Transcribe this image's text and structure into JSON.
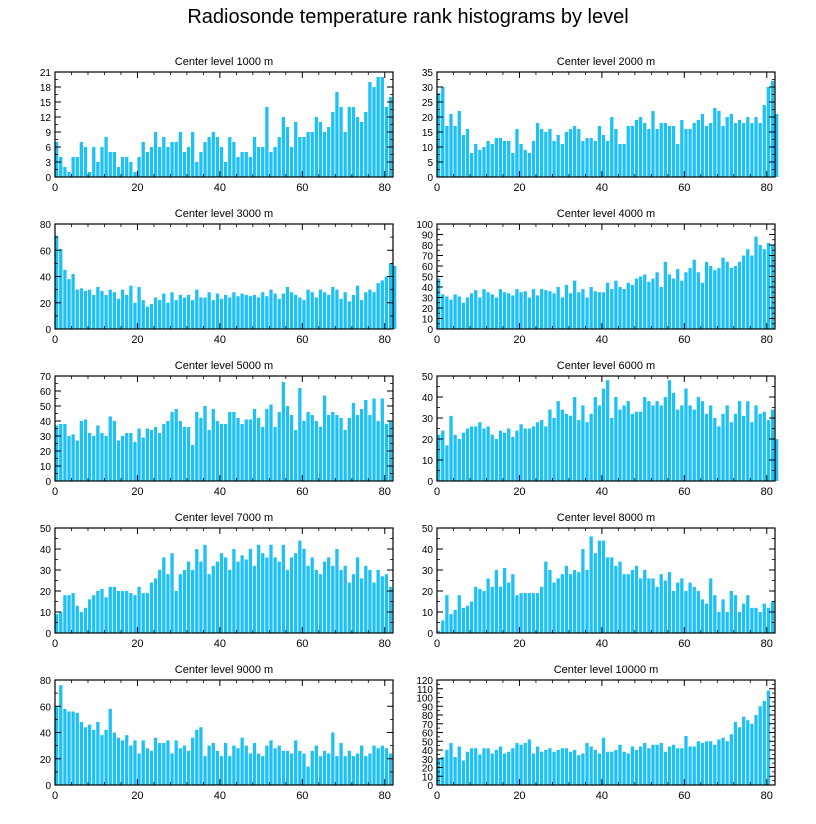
{
  "title": "Radiosonde temperature rank histograms by level",
  "bar_color": "#1ec0f5",
  "chart_data": [
    {
      "type": "bar",
      "title": "Center level 1000 m",
      "xlabel": "",
      "ylabel": "",
      "xlim": [
        0,
        82
      ],
      "ylim": [
        0,
        21
      ],
      "xticks": [
        0,
        20,
        40,
        60,
        80
      ],
      "yticks": [
        0,
        3,
        6,
        9,
        12,
        15,
        18,
        21
      ],
      "values": [
        7,
        4,
        2,
        1,
        4,
        4,
        7,
        6,
        1,
        6,
        3,
        6,
        8,
        5,
        5,
        2,
        4,
        4,
        3,
        1,
        4,
        7,
        5,
        6,
        9,
        6,
        8,
        6,
        7,
        7,
        9,
        5,
        6,
        9,
        3,
        5,
        7,
        8,
        9,
        8,
        6,
        3,
        8,
        7,
        4,
        5,
        5,
        4,
        8,
        6,
        6,
        14,
        5,
        6,
        8,
        12,
        10,
        6,
        11,
        8,
        8,
        9,
        9,
        12,
        11,
        9,
        10,
        13,
        17,
        14,
        9,
        14,
        14,
        12,
        11,
        13,
        19,
        18,
        20,
        20,
        14,
        16
      ]
    },
    {
      "type": "bar",
      "title": "Center level 2000 m",
      "xlabel": "",
      "ylabel": "",
      "xlim": [
        0,
        82
      ],
      "ylim": [
        0,
        35
      ],
      "xticks": [
        0,
        20,
        40,
        60,
        80
      ],
      "yticks": [
        0,
        5,
        10,
        15,
        20,
        25,
        30,
        35
      ],
      "values": [
        28,
        30,
        17,
        21,
        17,
        22,
        14,
        16,
        8,
        11,
        9,
        10,
        12,
        11,
        13,
        13,
        12,
        12,
        8,
        16,
        11,
        9,
        8,
        12,
        18,
        16,
        15,
        16,
        12,
        14,
        11,
        15,
        16,
        17,
        16,
        12,
        13,
        13,
        12,
        17,
        14,
        12,
        20,
        16,
        11,
        11,
        17,
        17,
        19,
        20,
        18,
        16,
        22,
        16,
        18,
        18,
        17,
        17,
        11,
        19,
        16,
        16,
        18,
        19,
        21,
        17,
        18,
        23,
        22,
        17,
        20,
        21,
        18,
        19,
        18,
        20,
        18,
        20,
        18,
        24,
        30,
        32,
        21
      ]
    },
    {
      "type": "bar",
      "title": "Center level 3000 m",
      "xlabel": "",
      "ylabel": "",
      "xlim": [
        0,
        82
      ],
      "ylim": [
        0,
        80
      ],
      "xticks": [
        0,
        20,
        40,
        60,
        80
      ],
      "yticks": [
        0,
        20,
        40,
        60,
        80
      ],
      "values": [
        71,
        61,
        45,
        38,
        42,
        30,
        31,
        29,
        30,
        26,
        32,
        29,
        26,
        30,
        28,
        23,
        30,
        26,
        33,
        20,
        32,
        22,
        17,
        19,
        24,
        22,
        27,
        20,
        28,
        22,
        26,
        24,
        26,
        22,
        30,
        24,
        24,
        28,
        22,
        27,
        23,
        26,
        24,
        28,
        25,
        27,
        26,
        25,
        26,
        24,
        28,
        25,
        30,
        27,
        23,
        27,
        32,
        28,
        26,
        24,
        22,
        30,
        28,
        24,
        30,
        28,
        26,
        32,
        30,
        23,
        28,
        21,
        26,
        33,
        22,
        28,
        30,
        28,
        35,
        37,
        40,
        50,
        48
      ]
    },
    {
      "type": "bar",
      "title": "Center level 4000 m",
      "xlabel": "",
      "ylabel": "",
      "xlim": [
        0,
        82
      ],
      "ylim": [
        0,
        100
      ],
      "xticks": [
        0,
        20,
        40,
        60,
        80
      ],
      "yticks": [
        0,
        10,
        20,
        30,
        40,
        50,
        60,
        70,
        80,
        90,
        100
      ],
      "values": [
        48,
        33,
        31,
        28,
        33,
        31,
        25,
        30,
        34,
        37,
        30,
        38,
        35,
        33,
        30,
        38,
        35,
        34,
        32,
        38,
        35,
        36,
        30,
        38,
        32,
        38,
        37,
        36,
        34,
        40,
        30,
        42,
        34,
        46,
        35,
        38,
        30,
        40,
        36,
        35,
        35,
        44,
        38,
        46,
        40,
        38,
        44,
        42,
        48,
        50,
        52,
        45,
        48,
        54,
        40,
        64,
        52,
        48,
        57,
        46,
        54,
        58,
        66,
        54,
        44,
        64,
        60,
        56,
        58,
        68,
        64,
        58,
        60,
        64,
        70,
        76,
        70,
        88,
        80,
        76,
        82,
        80
      ]
    },
    {
      "type": "bar",
      "title": "Center level 5000 m",
      "xlabel": "",
      "ylabel": "",
      "xlim": [
        0,
        82
      ],
      "ylim": [
        0,
        70
      ],
      "xticks": [
        0,
        20,
        40,
        60,
        80
      ],
      "yticks": [
        0,
        10,
        20,
        30,
        40,
        50,
        60,
        70
      ],
      "values": [
        37,
        38,
        38,
        30,
        31,
        27,
        40,
        41,
        32,
        30,
        37,
        32,
        30,
        43,
        40,
        27,
        30,
        32,
        32,
        26,
        35,
        29,
        35,
        34,
        36,
        32,
        38,
        40,
        46,
        48,
        40,
        36,
        36,
        24,
        46,
        42,
        50,
        34,
        48,
        40,
        38,
        38,
        46,
        46,
        42,
        38,
        41,
        41,
        48,
        42,
        36,
        48,
        51,
        36,
        46,
        66,
        50,
        44,
        34,
        62,
        40,
        46,
        44,
        40,
        36,
        57,
        44,
        46,
        44,
        42,
        34,
        42,
        52,
        44,
        48,
        54,
        44,
        55,
        40,
        55,
        38,
        40
      ]
    },
    {
      "type": "bar",
      "title": "Center level 6000 m",
      "xlabel": "",
      "ylabel": "",
      "xlim": [
        0,
        82
      ],
      "ylim": [
        0,
        50
      ],
      "xticks": [
        0,
        20,
        40,
        60,
        80
      ],
      "yticks": [
        0,
        10,
        20,
        30,
        40,
        50
      ],
      "values": [
        22,
        24,
        17,
        31,
        22,
        20,
        23,
        25,
        26,
        26,
        28,
        25,
        26,
        22,
        20,
        24,
        23,
        25,
        21,
        24,
        27,
        25,
        25,
        26,
        28,
        29,
        26,
        34,
        30,
        38,
        34,
        32,
        31,
        40,
        29,
        36,
        28,
        32,
        40,
        36,
        44,
        48,
        30,
        40,
        34,
        36,
        38,
        32,
        33,
        33,
        40,
        38,
        36,
        38,
        36,
        40,
        48,
        42,
        34,
        36,
        44,
        36,
        34,
        40,
        38,
        32,
        36,
        30,
        26,
        32,
        36,
        28,
        32,
        38,
        31,
        38,
        28,
        36,
        32,
        33,
        29,
        34,
        20
      ]
    },
    {
      "type": "bar",
      "title": "Center level 7000 m",
      "xlabel": "",
      "ylabel": "",
      "xlim": [
        0,
        82
      ],
      "ylim": [
        0,
        50
      ],
      "xticks": [
        0,
        20,
        40,
        60,
        80
      ],
      "yticks": [
        0,
        10,
        20,
        30,
        40,
        50
      ],
      "values": [
        9,
        10,
        18,
        18,
        19,
        13,
        10,
        12,
        16,
        18,
        20,
        21,
        17,
        22,
        22,
        20,
        20,
        20,
        19,
        18,
        22,
        19,
        19,
        24,
        26,
        30,
        36,
        28,
        38,
        20,
        28,
        30,
        34,
        30,
        40,
        34,
        42,
        28,
        32,
        34,
        38,
        36,
        30,
        40,
        34,
        37,
        35,
        40,
        32,
        42,
        38,
        36,
        42,
        36,
        34,
        42,
        30,
        36,
        38,
        44,
        40,
        32,
        36,
        30,
        28,
        34,
        36,
        32,
        40,
        30,
        32,
        24,
        28,
        36,
        26,
        32,
        30,
        24,
        30,
        27,
        28,
        22
      ]
    },
    {
      "type": "bar",
      "title": "Center level 8000 m",
      "xlabel": "",
      "ylabel": "",
      "xlim": [
        0,
        82
      ],
      "ylim": [
        0,
        50
      ],
      "xticks": [
        0,
        20,
        40,
        60,
        80
      ],
      "yticks": [
        0,
        10,
        20,
        30,
        40,
        50
      ],
      "values": [
        1,
        6,
        18,
        9,
        11,
        18,
        12,
        13,
        15,
        22,
        21,
        20,
        26,
        22,
        30,
        22,
        31,
        24,
        28,
        18,
        19,
        19,
        19,
        19,
        19,
        22,
        34,
        30,
        24,
        26,
        28,
        32,
        28,
        30,
        29,
        40,
        30,
        46,
        38,
        44,
        44,
        36,
        36,
        32,
        34,
        28,
        28,
        30,
        32,
        26,
        30,
        26,
        26,
        22,
        28,
        25,
        29,
        20,
        24,
        26,
        20,
        24,
        22,
        20,
        16,
        14,
        26,
        18,
        10,
        16,
        10,
        20,
        18,
        10,
        14,
        18,
        12,
        12,
        10,
        14,
        12,
        15
      ]
    },
    {
      "type": "bar",
      "title": "Center level 9000 m",
      "xlabel": "",
      "ylabel": "",
      "xlim": [
        0,
        82
      ],
      "ylim": [
        0,
        80
      ],
      "xticks": [
        0,
        20,
        40,
        60,
        80
      ],
      "yticks": [
        0,
        20,
        40,
        60,
        80
      ],
      "values": [
        60,
        76,
        58,
        56,
        56,
        55,
        48,
        44,
        46,
        42,
        48,
        38,
        42,
        58,
        40,
        36,
        34,
        38,
        30,
        34,
        24,
        34,
        28,
        26,
        36,
        32,
        32,
        34,
        24,
        34,
        28,
        30,
        26,
        36,
        42,
        44,
        22,
        30,
        32,
        26,
        22,
        32,
        22,
        30,
        28,
        36,
        30,
        24,
        32,
        24,
        22,
        30,
        34,
        28,
        30,
        26,
        26,
        24,
        34,
        26,
        24,
        14,
        26,
        30,
        22,
        26,
        24,
        40,
        22,
        32,
        22,
        26,
        22,
        24,
        30,
        22,
        24,
        30,
        28,
        30,
        28,
        24
      ]
    },
    {
      "type": "bar",
      "title": "Center level 10000 m",
      "xlabel": "",
      "ylabel": "",
      "xlim": [
        0,
        82
      ],
      "ylim": [
        0,
        120
      ],
      "xticks": [
        0,
        20,
        40,
        60,
        80
      ],
      "yticks": [
        0,
        10,
        20,
        30,
        40,
        50,
        60,
        70,
        80,
        90,
        100,
        110,
        120
      ],
      "values": [
        30,
        32,
        40,
        48,
        32,
        44,
        28,
        38,
        42,
        42,
        35,
        42,
        42,
        36,
        40,
        44,
        36,
        38,
        42,
        48,
        46,
        48,
        52,
        36,
        44,
        38,
        40,
        42,
        38,
        40,
        42,
        42,
        38,
        40,
        34,
        36,
        48,
        44,
        40,
        36,
        54,
        38,
        38,
        40,
        46,
        38,
        36,
        44,
        40,
        44,
        48,
        42,
        46,
        46,
        48,
        38,
        44,
        46,
        42,
        42,
        56,
        44,
        44,
        50,
        48,
        50,
        50,
        46,
        52,
        54,
        50,
        58,
        72,
        66,
        78,
        74,
        70,
        80,
        90,
        96,
        108
      ]
    }
  ]
}
